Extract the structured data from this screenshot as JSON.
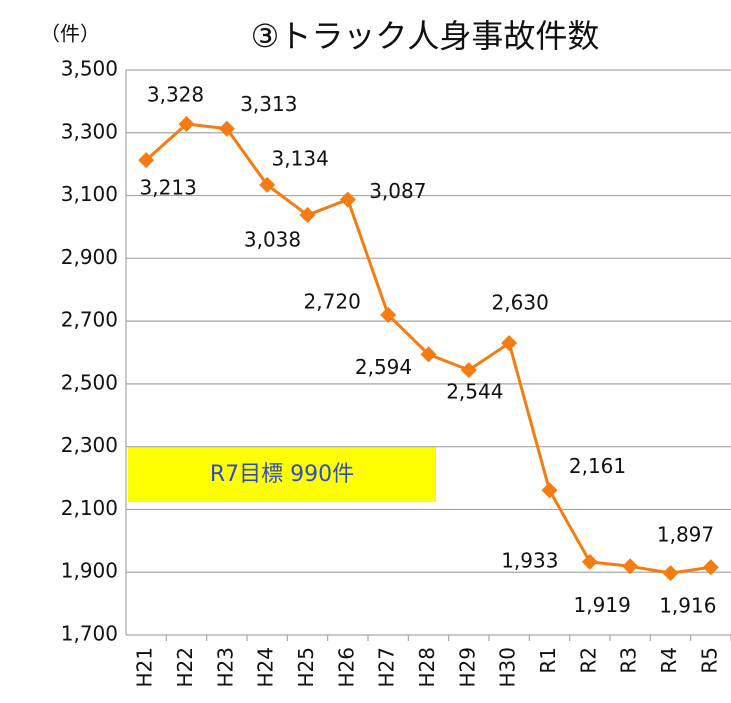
{
  "chart_data": {
    "type": "line",
    "title": "③トラック人身事故件数",
    "y_unit": "（件）",
    "annotation": "R7目標 990件",
    "categories": [
      "H21",
      "H22",
      "H23",
      "H24",
      "H25",
      "H26",
      "H27",
      "H28",
      "H29",
      "H30",
      "R1",
      "R2",
      "R3",
      "R4",
      "R5"
    ],
    "series": [
      {
        "name": "トラック人身事故件数",
        "color": "#f47c12",
        "values": [
          3213,
          3328,
          3313,
          3134,
          3038,
          3087,
          2720,
          2594,
          2544,
          2630,
          2161,
          1933,
          1919,
          1897,
          1916
        ],
        "value_labels": [
          "3,213",
          "3,328",
          "3,313",
          "3,134",
          "3,038",
          "3,087",
          "2,720",
          "2,594",
          "2,544",
          "2,630",
          "2,161",
          "1,933",
          "1,919",
          "1,897",
          "1,916"
        ]
      }
    ],
    "ylim": [
      1700,
      3500
    ],
    "yticks": [
      {
        "value": 1700,
        "label": "1,700"
      },
      {
        "value": 1900,
        "label": "1,900"
      },
      {
        "value": 2100,
        "label": "2,100"
      },
      {
        "value": 2300,
        "label": "2,300"
      },
      {
        "value": 2500,
        "label": "2,500"
      },
      {
        "value": 2700,
        "label": "2,700"
      },
      {
        "value": 2900,
        "label": "2,900"
      },
      {
        "value": 3100,
        "label": "3,100"
      },
      {
        "value": 3300,
        "label": "3,300"
      },
      {
        "value": 3500,
        "label": "3,500"
      }
    ],
    "grid": true
  }
}
